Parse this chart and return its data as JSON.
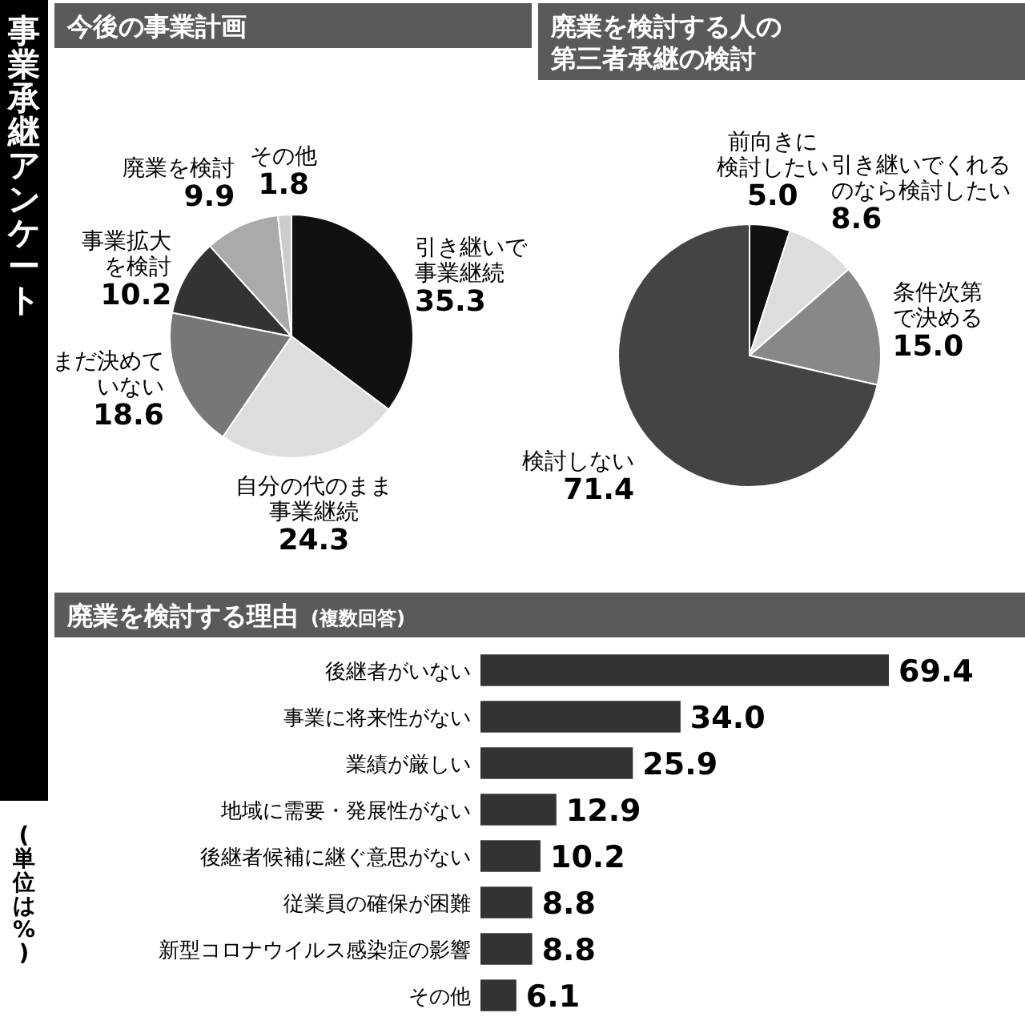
{
  "chart_data": [
    {
      "type": "other",
      "title": "事業承継アンケート",
      "annotations": [
        "(単位は%)"
      ]
    },
    {
      "type": "pie",
      "title": "今後の事業計画",
      "categories": [
        "引き継いで事業継続",
        "自分の代のまま事業継続",
        "まだ決めていない",
        "事業拡大を検討",
        "廃業を検討",
        "その他"
      ],
      "values": [
        35.3,
        24.3,
        18.6,
        10.2,
        9.9,
        1.8
      ],
      "value_labels": [
        "35.3",
        "24.3",
        "18.6",
        "10.2",
        "9.9",
        "1.8"
      ],
      "colors": [
        "#111111",
        "#dddddd",
        "#777777",
        "#333333",
        "#aaaaaa",
        "#cccccc"
      ]
    },
    {
      "type": "pie",
      "title": "廃業を検討する人の第三者承継の検討",
      "categories": [
        "前向きに検討したい",
        "引き継いでくれるのなら検討したい",
        "条件次第で決める",
        "検討しない"
      ],
      "values": [
        5.0,
        8.6,
        15.0,
        71.4
      ],
      "value_labels": [
        "5.0",
        "8.6",
        "15.0",
        "71.4"
      ],
      "colors": [
        "#111111",
        "#dddddd",
        "#888888",
        "#444444"
      ]
    },
    {
      "type": "bar",
      "orientation": "horizontal",
      "title": "廃業を検討する理由",
      "subtitle": "(複数回答)",
      "categories": [
        "後継者がいない",
        "事業に将来性がない",
        "業績が厳しい",
        "地域に需要・発展性がない",
        "後継者候補に継ぐ意思がない",
        "従業員の確保が困難",
        "新型コロナウイルス感染症の影響",
        "その他"
      ],
      "values": [
        69.4,
        34.0,
        25.9,
        12.9,
        10.2,
        8.8,
        8.8,
        6.1
      ],
      "value_labels": [
        "69.4",
        "34.0",
        "25.9",
        "12.9",
        "10.2",
        "8.8",
        "8.8",
        "6.1"
      ],
      "color": "#333333"
    }
  ]
}
